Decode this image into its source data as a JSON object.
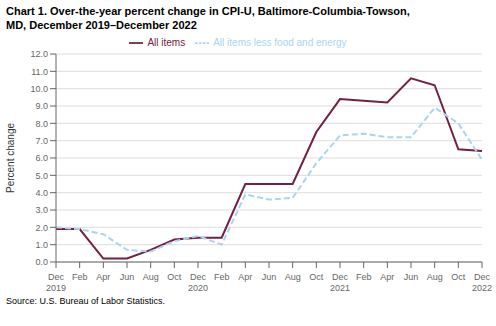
{
  "chart_data": {
    "type": "line",
    "title": "Chart 1. Over-the-year percent change in CPI-U, Baltimore-Columbia-Towson,\nMD, December 2019–December 2022",
    "y_label": "Percent change",
    "annotations": [
      {
        "text": "Source: U.S. Bureau of Labor Statistics."
      }
    ],
    "categories": [
      "Dec 2019",
      "Feb",
      "Apr",
      "Jun",
      "Aug",
      "Oct",
      "Dec 2020",
      "Feb",
      "Apr",
      "Jun",
      "Aug",
      "Oct",
      "Dec 2021",
      "Feb",
      "Apr",
      "Jun",
      "Aug",
      "Oct",
      "Dec 2022"
    ],
    "series": [
      {
        "name": "All items",
        "color": "#722043",
        "line_style": "solid",
        "values": [
          1.9,
          1.9,
          0.2,
          0.2,
          0.7,
          1.3,
          1.4,
          1.4,
          4.5,
          4.5,
          4.5,
          7.5,
          9.4,
          9.3,
          9.2,
          10.6,
          10.2,
          6.5,
          6.4
        ]
      },
      {
        "name": "All items less food and energy",
        "color": "#aad4f0",
        "line_style": "dashed",
        "values": [
          2.0,
          1.9,
          1.6,
          0.7,
          0.6,
          1.2,
          1.5,
          1.0,
          3.9,
          3.6,
          3.7,
          5.7,
          7.3,
          7.4,
          7.2,
          7.2,
          8.9,
          8.0,
          5.9
        ]
      }
    ],
    "ylim": [
      0.0,
      12.0
    ],
    "yticks": [
      {
        "value": 0.0,
        "label": "0.0"
      },
      {
        "value": 1.0,
        "label": "1.0"
      },
      {
        "value": 2.0,
        "label": "2.0"
      },
      {
        "value": 3.0,
        "label": "3.0"
      },
      {
        "value": 4.0,
        "label": "4.0"
      },
      {
        "value": 5.0,
        "label": "5.0"
      },
      {
        "value": 6.0,
        "label": "6.0"
      },
      {
        "value": 7.0,
        "label": "7.0"
      },
      {
        "value": 8.0,
        "label": "8.0"
      },
      {
        "value": 9.0,
        "label": "9.0"
      },
      {
        "value": 10.0,
        "label": "10.0"
      },
      {
        "value": 11.0,
        "label": "11.0"
      },
      {
        "value": 12.0,
        "label": "12.0"
      }
    ],
    "grid": "y",
    "legend": "top"
  }
}
